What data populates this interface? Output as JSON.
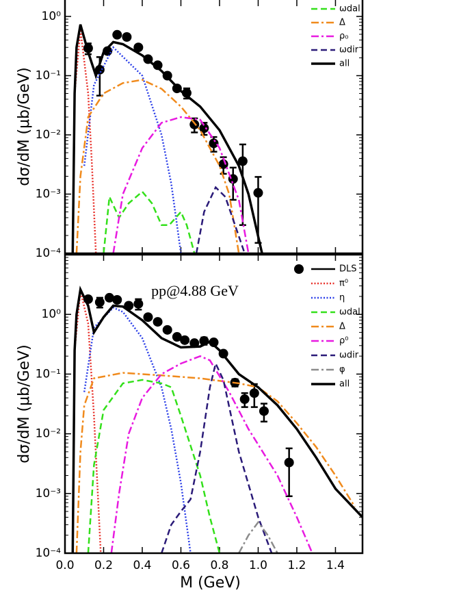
{
  "chart_data": [
    {
      "type": "line",
      "ylabel": "dσ/dM (μb/GeV)",
      "ylog": true,
      "xlim": [
        0,
        1.54
      ],
      "ylim": [
        0.0001,
        10
      ],
      "xticks": [
        0,
        0.2,
        0.4,
        0.6,
        0.8,
        1,
        1.2,
        1.4
      ],
      "yticks": [
        {
          "value": 1,
          "label": "10⁰"
        },
        {
          "value": 0.1,
          "label": "10⁻¹"
        },
        {
          "value": 0.01,
          "label": "10⁻²"
        },
        {
          "value": 0.001,
          "label": "10⁻³"
        },
        {
          "value": 0.0001,
          "label": "10⁻⁴"
        }
      ],
      "series": [
        {
          "marker": "circle",
          "color": "#000000",
          "x": [
            0.12,
            0.18,
            0.22,
            0.27,
            0.32,
            0.38,
            0.43,
            0.48,
            0.53,
            0.58,
            0.63,
            0.67,
            0.72,
            0.77,
            0.82,
            0.87,
            0.92,
            1.0
          ],
          "values": [
            0.29,
            0.126,
            0.26,
            0.49,
            0.45,
            0.3,
            0.19,
            0.15,
            0.1,
            0.061,
            0.051,
            0.015,
            0.013,
            0.0072,
            0.0032,
            0.0018,
            0.0036,
            0.00105
          ],
          "errors": [
            0.06,
            0.08,
            null,
            null,
            null,
            null,
            null,
            null,
            null,
            null,
            0.01,
            0.004,
            0.003,
            0.002,
            0.001,
            0.001,
            0.0033,
            0.0009
          ]
        },
        {
          "color": "#e8302a",
          "style": "dotted",
          "x": [
            0.04,
            0.05,
            0.08,
            0.12,
            0.14,
            0.16
          ],
          "values": [
            0.0001,
            0.05,
            0.6,
            0.05,
            0.003,
            0.0001
          ]
        },
        {
          "color": "#2a3ee8",
          "style": "dotted",
          "x": [
            0.1,
            0.15,
            0.25,
            0.4,
            0.5,
            0.55,
            0.6
          ],
          "values": [
            0.003,
            0.07,
            0.3,
            0.1,
            0.01,
            0.0015,
            0.0001
          ]
        },
        {
          "name": "ωdal",
          "color": "#33e01a",
          "style": "dashed",
          "x": [
            0.2,
            0.23,
            0.28,
            0.33,
            0.4,
            0.45,
            0.5,
            0.54,
            0.6,
            0.63,
            0.67
          ],
          "values": [
            0.0001,
            0.0009,
            0.0004,
            0.0007,
            0.0011,
            0.0007,
            0.0003,
            0.0003,
            0.0005,
            0.0003,
            0.0001
          ]
        },
        {
          "name": "Δ",
          "color": "#f08a1c",
          "style": "dashdot",
          "x": [
            0.06,
            0.08,
            0.12,
            0.2,
            0.3,
            0.4,
            0.5,
            0.6,
            0.7,
            0.8,
            0.85,
            0.9
          ],
          "values": [
            0.0001,
            0.002,
            0.02,
            0.05,
            0.075,
            0.085,
            0.06,
            0.03,
            0.012,
            0.003,
            0.001,
            0.0001
          ]
        },
        {
          "name": "ρ₀",
          "color": "#e81ae0",
          "style": "dashdot",
          "x": [
            0.25,
            0.3,
            0.4,
            0.5,
            0.6,
            0.7,
            0.8,
            0.9,
            0.95
          ],
          "values": [
            0.0001,
            0.001,
            0.006,
            0.016,
            0.02,
            0.018,
            0.006,
            0.0008,
            0.0001
          ]
        },
        {
          "name": "ωdir",
          "color": "#2a1a78",
          "style": "dashed",
          "x": [
            0.68,
            0.72,
            0.78,
            0.83,
            0.88,
            0.93
          ],
          "values": [
            0.0001,
            0.0005,
            0.0013,
            0.0009,
            0.0003,
            0.0001
          ]
        },
        {
          "name": "all",
          "color": "#000000",
          "style": "solid",
          "x": [
            0.04,
            0.05,
            0.06,
            0.08,
            0.12,
            0.16,
            0.2,
            0.25,
            0.3,
            0.4,
            0.5,
            0.6,
            0.7,
            0.8,
            0.9,
            0.95,
            1.02
          ],
          "values": [
            0.0001,
            0.05,
            0.3,
            0.73,
            0.25,
            0.1,
            0.25,
            0.37,
            0.34,
            0.22,
            0.12,
            0.055,
            0.03,
            0.012,
            0.003,
            0.001,
            0.0001
          ]
        }
      ]
    },
    {
      "type": "line",
      "title": "pp@4.88 GeV",
      "xlabel": "M (GeV)",
      "ylabel": "dσ/dM (μb/GeV)",
      "ylog": true,
      "xlim": [
        0,
        1.54
      ],
      "ylim": [
        0.0001,
        10
      ],
      "xticks": [
        {
          "value": 0,
          "label": "0.0"
        },
        0.2,
        0.4,
        0.6,
        0.8,
        {
          "value": 1,
          "label": "1.0"
        },
        1.2,
        1.4
      ],
      "yticks": [
        {
          "value": 1,
          "label": "10⁰"
        },
        {
          "value": 0.1,
          "label": "10⁻¹"
        },
        {
          "value": 0.01,
          "label": "10⁻²"
        },
        {
          "value": 0.001,
          "label": "10⁻³"
        },
        {
          "value": 0.0001,
          "label": "10⁻⁴"
        }
      ],
      "series": [
        {
          "name": "DLS",
          "marker": "circle",
          "color": "#000000",
          "x": [
            0.12,
            0.18,
            0.23,
            0.27,
            0.33,
            0.38,
            0.43,
            0.48,
            0.53,
            0.58,
            0.62,
            0.67,
            0.72,
            0.77,
            0.82,
            0.88,
            0.93,
            0.98,
            1.03,
            1.16
          ],
          "values": [
            1.8,
            1.6,
            1.9,
            1.75,
            1.4,
            1.5,
            0.9,
            0.75,
            0.55,
            0.42,
            0.37,
            0.33,
            0.36,
            0.34,
            0.22,
            0.072,
            0.038,
            0.048,
            0.024,
            0.0033
          ],
          "errors": [
            null,
            0.3,
            null,
            null,
            null,
            0.3,
            null,
            null,
            null,
            null,
            null,
            null,
            0.05,
            null,
            null,
            0.01,
            0.01,
            0.02,
            0.008,
            0.0024
          ]
        },
        {
          "name": "π⁰",
          "color": "#e8302a",
          "style": "dotted",
          "x": [
            0.04,
            0.05,
            0.08,
            0.12,
            0.15,
            0.17,
            0.185
          ],
          "values": [
            0.0001,
            0.25,
            2.5,
            0.7,
            0.02,
            0.001,
            0.0001
          ]
        },
        {
          "name": "η",
          "color": "#2a3ee8",
          "style": "dotted",
          "x": [
            0.1,
            0.15,
            0.25,
            0.3,
            0.4,
            0.5,
            0.55,
            0.6,
            0.65
          ],
          "values": [
            0.05,
            0.6,
            1.3,
            1.1,
            0.4,
            0.06,
            0.012,
            0.0015,
            0.0001
          ]
        },
        {
          "name": "ωdal",
          "color": "#33e01a",
          "style": "dashed",
          "x": [
            0.12,
            0.15,
            0.2,
            0.3,
            0.4,
            0.5,
            0.55,
            0.6,
            0.7,
            0.75,
            0.8
          ],
          "values": [
            0.0001,
            0.003,
            0.025,
            0.07,
            0.08,
            0.07,
            0.06,
            0.02,
            0.002,
            0.0004,
            0.0001
          ]
        },
        {
          "name": "Δ",
          "color": "#f08a1c",
          "style": "dashdot",
          "x": [
            0.06,
            0.08,
            0.1,
            0.15,
            0.3,
            0.5,
            0.7,
            0.9,
            1.0,
            1.1,
            1.2,
            1.3,
            1.4,
            1.5
          ],
          "values": [
            0.0001,
            0.005,
            0.03,
            0.085,
            0.105,
            0.095,
            0.085,
            0.07,
            0.06,
            0.035,
            0.015,
            0.006,
            0.002,
            0.0006
          ]
        },
        {
          "name": "ρ⁰",
          "color": "#e81ae0",
          "style": "dashdot",
          "x": [
            0.24,
            0.28,
            0.33,
            0.4,
            0.5,
            0.6,
            0.7,
            0.75,
            0.85,
            0.95,
            1.1,
            1.2,
            1.28
          ],
          "values": [
            0.0001,
            0.001,
            0.01,
            0.04,
            0.1,
            0.15,
            0.2,
            0.17,
            0.05,
            0.012,
            0.002,
            0.0004,
            0.0001
          ]
        },
        {
          "name": "ωdir",
          "color": "#2a1a78",
          "style": "dashed",
          "x": [
            0.5,
            0.55,
            0.6,
            0.65,
            0.7,
            0.75,
            0.78,
            0.82,
            0.9,
            1.0,
            1.07
          ],
          "values": [
            0.0001,
            0.0003,
            0.0005,
            0.0008,
            0.005,
            0.06,
            0.15,
            0.08,
            0.005,
            0.0004,
            0.0001
          ]
        },
        {
          "name": "φ",
          "color": "#8c8c8c",
          "style": "dashdot",
          "x": [
            0.9,
            0.95,
            1.0,
            1.05,
            1.1
          ],
          "values": [
            0.0001,
            0.0002,
            0.00033,
            0.0002,
            0.0001
          ]
        },
        {
          "name": "all",
          "color": "#000000",
          "style": "solid",
          "x": [
            0.04,
            0.05,
            0.06,
            0.08,
            0.12,
            0.15,
            0.2,
            0.25,
            0.3,
            0.4,
            0.5,
            0.6,
            0.7,
            0.75,
            0.8,
            0.9,
            1.0,
            1.1,
            1.2,
            1.3,
            1.4,
            1.54
          ],
          "values": [
            0.0001,
            0.25,
            1.0,
            2.6,
            1.4,
            0.5,
            0.9,
            1.4,
            1.35,
            0.8,
            0.4,
            0.28,
            0.29,
            0.35,
            0.25,
            0.1,
            0.06,
            0.03,
            0.012,
            0.004,
            0.0012,
            0.0004
          ]
        }
      ]
    }
  ]
}
